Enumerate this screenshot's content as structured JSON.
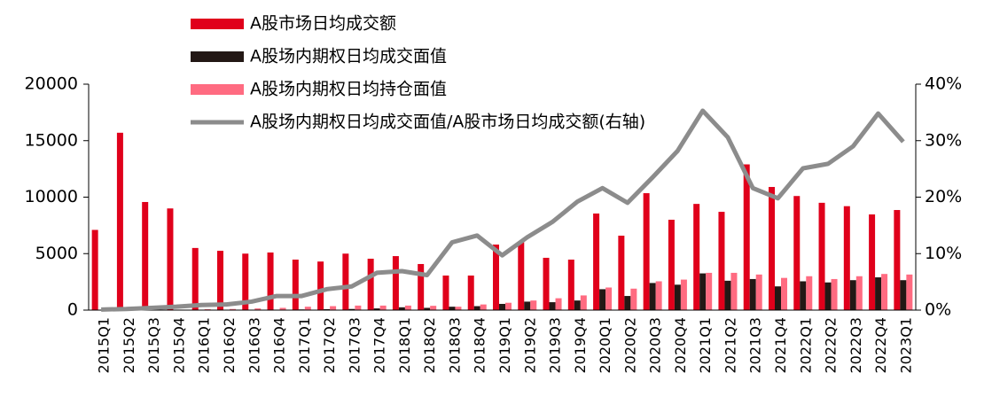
{
  "chart_data": {
    "type": "bar-line",
    "categories": [
      "2015Q1",
      "2015Q2",
      "2015Q3",
      "2015Q4",
      "2016Q1",
      "2016Q2",
      "2016Q3",
      "2016Q4",
      "2017Q1",
      "2017Q2",
      "2017Q3",
      "2017Q4",
      "2018Q1",
      "2018Q2",
      "2018Q3",
      "2018Q4",
      "2019Q1",
      "2019Q2",
      "2019Q3",
      "2019Q4",
      "2020Q1",
      "2020Q2",
      "2020Q3",
      "2020Q4",
      "2021Q1",
      "2021Q2",
      "2021Q3",
      "2021Q4",
      "2022Q1",
      "2022Q2",
      "2022Q3",
      "2022Q4",
      "2023Q1"
    ],
    "series": [
      {
        "name": "A股市场日均成交额",
        "color": "#e0001b",
        "type": "bar",
        "values": [
          7100,
          15700,
          9570,
          9000,
          5500,
          5250,
          5000,
          5100,
          4470,
          4300,
          5000,
          4550,
          4780,
          4080,
          3060,
          3060,
          5800,
          6000,
          4630,
          4470,
          8550,
          6590,
          10350,
          8000,
          9400,
          8700,
          12900,
          10900,
          10100,
          9500,
          9200,
          8470,
          8860
        ]
      },
      {
        "name": "A股场内期权日均成交面值",
        "color": "#231815",
        "type": "bar",
        "values": [
          5,
          10,
          15,
          15,
          20,
          25,
          30,
          40,
          60,
          80,
          100,
          150,
          250,
          200,
          300,
          350,
          550,
          750,
          700,
          850,
          1850,
          1250,
          2400,
          2250,
          3250,
          2600,
          2750,
          2100,
          2550,
          2450,
          2650,
          2900,
          2650
        ]
      },
      {
        "name": "A股场内期权日均持仓面值",
        "color": "#ff6b81",
        "type": "bar",
        "values": [
          10,
          20,
          30,
          40,
          80,
          100,
          150,
          200,
          300,
          350,
          400,
          400,
          400,
          380,
          300,
          500,
          650,
          850,
          1050,
          1300,
          2000,
          1900,
          2550,
          2700,
          3300,
          3300,
          3150,
          2850,
          3000,
          2750,
          3000,
          3200,
          3150
        ]
      },
      {
        "name": "A股场内期权日均成交面值/A股市场日均成交额(右轴)",
        "color": "#8c8c8c",
        "type": "line",
        "axis": "y2",
        "values": [
          0.1,
          0.2,
          0.4,
          0.6,
          0.9,
          1.0,
          1.5,
          2.5,
          2.5,
          3.7,
          4.2,
          6.6,
          6.9,
          6.2,
          12.0,
          13.2,
          9.7,
          12.9,
          15.6,
          19.2,
          21.6,
          19.0,
          23.5,
          28.2,
          35.3,
          30.6,
          21.6,
          19.8,
          25.1,
          25.9,
          29.0,
          34.8,
          29.8
        ]
      }
    ],
    "ylim": [
      0,
      20000
    ],
    "yticks": [
      0,
      5000,
      10000,
      15000,
      20000
    ],
    "y2lim": [
      0,
      40
    ],
    "y2ticks": [
      {
        "value": 0,
        "label": "0%"
      },
      {
        "value": 10,
        "label": "10%"
      },
      {
        "value": 20,
        "label": "20%"
      },
      {
        "value": 30,
        "label": "30%"
      },
      {
        "value": 40,
        "label": "40%"
      }
    ]
  }
}
